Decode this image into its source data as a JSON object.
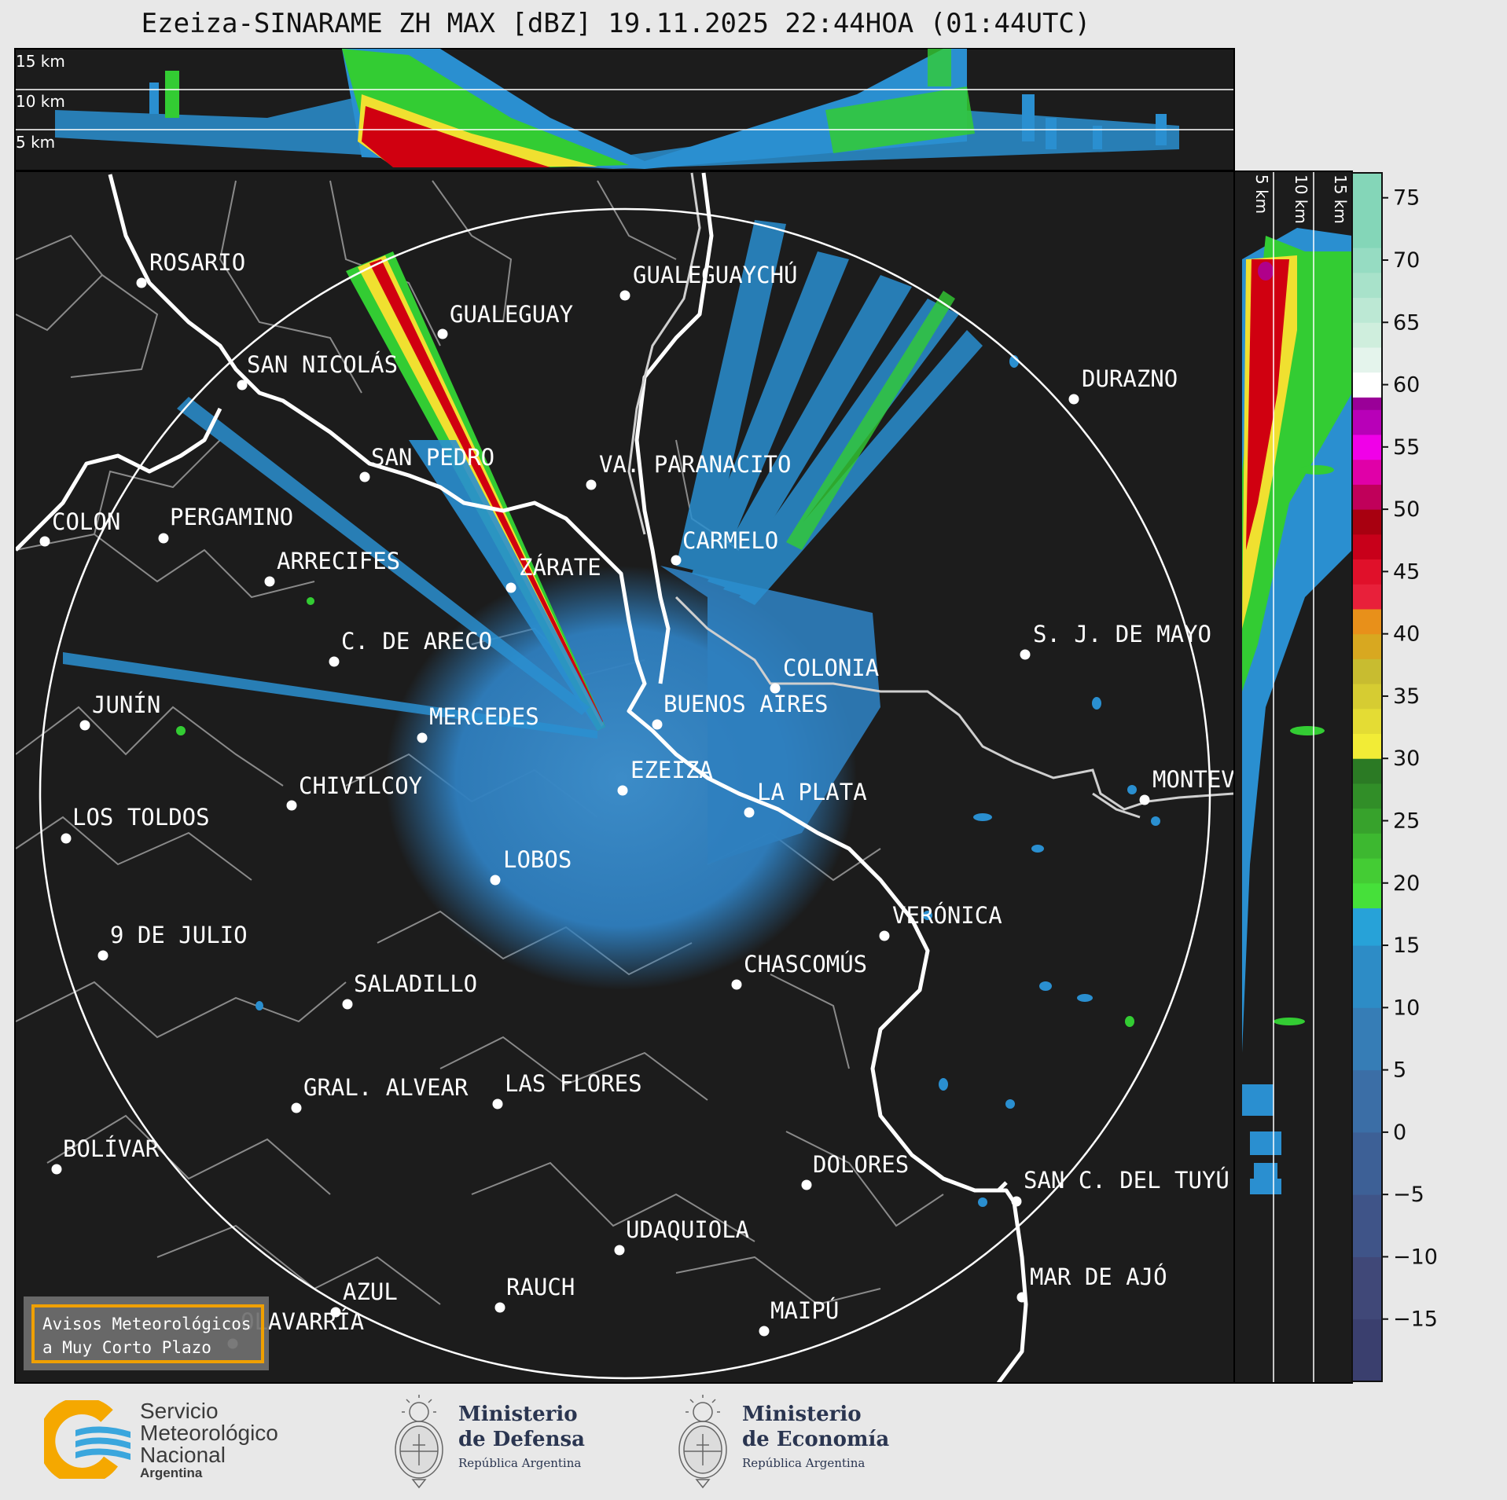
{
  "title": "Ezeiza-SINARAME ZH MAX [dBZ] 19.11.2025 22:44HOA (01:44UTC)",
  "top_panel": {
    "altitude_labels": [
      "15 km",
      "10 km",
      "5 km"
    ]
  },
  "side_panel": {
    "altitude_labels": [
      "5 km",
      "10 km",
      "15 km"
    ]
  },
  "colorbar": {
    "unit": "dBZ",
    "ticks": [
      "75",
      "70",
      "65",
      "60",
      "55",
      "50",
      "45",
      "40",
      "35",
      "30",
      "25",
      "20",
      "15",
      "10",
      "5",
      "0",
      "−5",
      "−10",
      "−15"
    ],
    "colors": {
      "green": "#33cc33",
      "yellow": "#f0e030",
      "red": "#d00010",
      "blue": "#2a8fd0",
      "magenta": "#e000e0"
    }
  },
  "cities": [
    {
      "name": "ROSARIO",
      "icon": "city-dot-icon"
    },
    {
      "name": "GUALEGUAYCHÚ",
      "icon": "city-dot-icon"
    },
    {
      "name": "GUALEGUAY",
      "icon": "city-dot-icon"
    },
    {
      "name": "SAN NICOLÁS",
      "icon": "city-dot-icon"
    },
    {
      "name": "DURAZNO",
      "icon": "city-dot-icon"
    },
    {
      "name": "SAN PEDRO",
      "icon": "city-dot-icon"
    },
    {
      "name": "VA. PARANACITO",
      "icon": "city-dot-icon"
    },
    {
      "name": "COLON",
      "icon": "city-dot-icon"
    },
    {
      "name": "PERGAMINO",
      "icon": "city-dot-icon"
    },
    {
      "name": "CARMELO",
      "icon": "city-dot-icon"
    },
    {
      "name": "ARRECIFES",
      "icon": "city-dot-icon"
    },
    {
      "name": "ZÁRATE",
      "icon": "city-dot-icon"
    },
    {
      "name": "S. J. DE MAYO",
      "icon": "city-dot-icon"
    },
    {
      "name": "C. DE ARECO",
      "icon": "city-dot-icon"
    },
    {
      "name": "COLONIA",
      "icon": "city-dot-icon"
    },
    {
      "name": "BUENOS AIRES",
      "icon": "city-dot-icon"
    },
    {
      "name": "JUNÍN",
      "icon": "city-dot-icon"
    },
    {
      "name": "MERCEDES",
      "icon": "city-dot-icon"
    },
    {
      "name": "EZEIZA",
      "icon": "city-dot-icon"
    },
    {
      "name": "MONTEVIDEO",
      "icon": "city-dot-icon"
    },
    {
      "name": "CHIVILCOY",
      "icon": "city-dot-icon"
    },
    {
      "name": "LA PLATA",
      "icon": "city-dot-icon"
    },
    {
      "name": "LOS TOLDOS",
      "icon": "city-dot-icon"
    },
    {
      "name": "LOBOS",
      "icon": "city-dot-icon"
    },
    {
      "name": "VERÓNICA",
      "icon": "city-dot-icon"
    },
    {
      "name": "9 DE JULIO",
      "icon": "city-dot-icon"
    },
    {
      "name": "CHASCOMÚS",
      "icon": "city-dot-icon"
    },
    {
      "name": "SALADILLO",
      "icon": "city-dot-icon"
    },
    {
      "name": "GRAL. ALVEAR",
      "icon": "city-dot-icon"
    },
    {
      "name": "LAS FLORES",
      "icon": "city-dot-icon"
    },
    {
      "name": "BOLÍVAR",
      "icon": "city-dot-icon"
    },
    {
      "name": "DOLORES",
      "icon": "city-dot-icon"
    },
    {
      "name": "SAN C. DEL TUYÚ",
      "icon": "city-dot-icon"
    },
    {
      "name": "UDAQUIOLA",
      "icon": "city-dot-icon"
    },
    {
      "name": "AZUL",
      "icon": "city-dot-icon"
    },
    {
      "name": "RAUCH",
      "icon": "city-dot-icon"
    },
    {
      "name": "MAR DE AJÓ",
      "icon": "city-dot-icon"
    },
    {
      "name": "OLAVARRÍA",
      "icon": "city-dot-icon"
    },
    {
      "name": "MAIPÚ",
      "icon": "city-dot-icon"
    }
  ],
  "warning_box": {
    "line1": "Avisos Meteorológicos",
    "line2": "a Muy Corto Plazo"
  },
  "logos": {
    "smn": {
      "line1": "Servicio",
      "line2": "Meteorológico",
      "line3": "Nacional",
      "line4": "Argentina",
      "icon": "smn-logo-icon"
    },
    "defensa": {
      "line1": "Ministerio",
      "line2": "de Defensa",
      "line3": "República Argentina",
      "icon": "argentina-coat-of-arms-icon"
    },
    "economia": {
      "line1": "Ministerio",
      "line2": "de Economía",
      "line3": "República Argentina",
      "icon": "argentina-coat-of-arms-icon"
    }
  }
}
